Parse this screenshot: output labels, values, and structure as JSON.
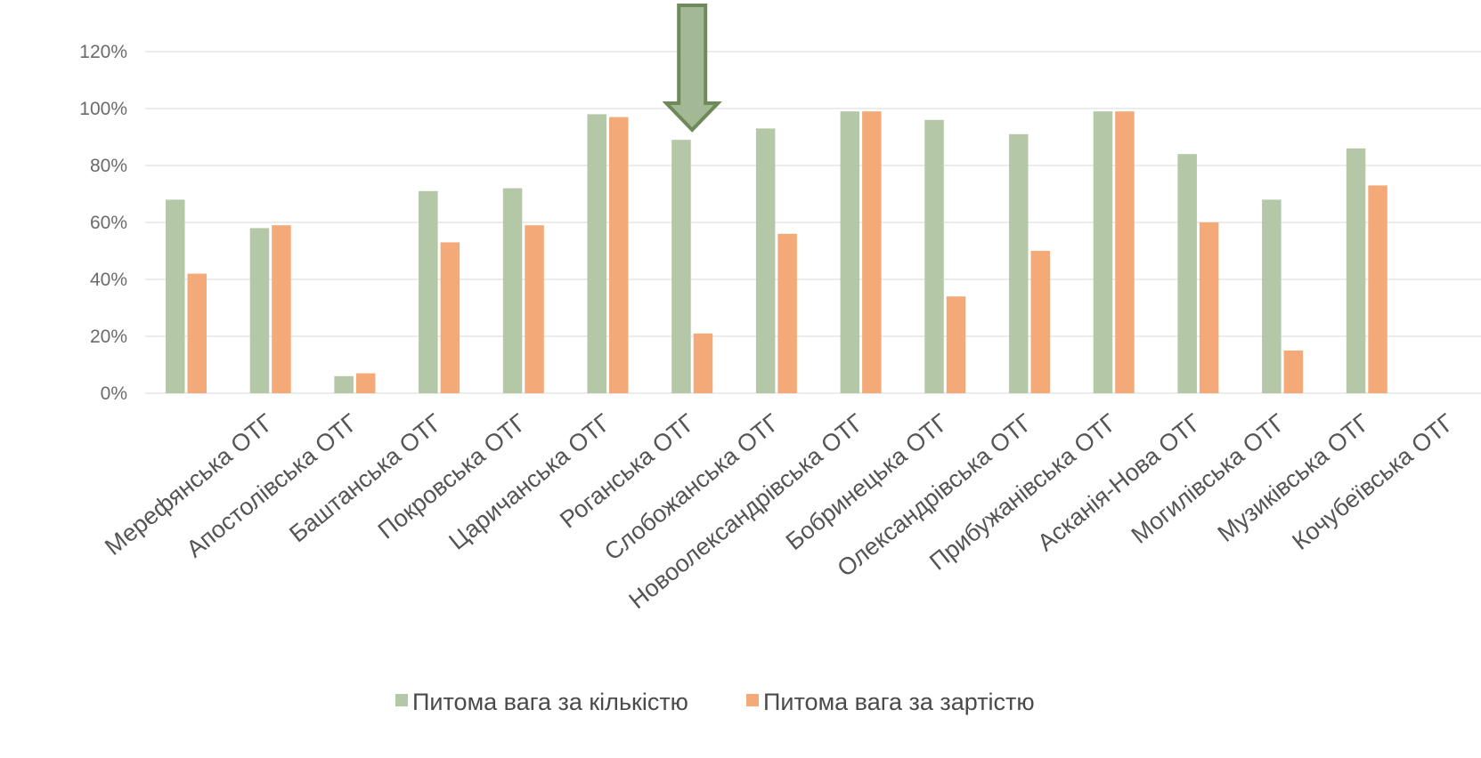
{
  "chart_data": {
    "type": "bar",
    "title": "",
    "xlabel": "",
    "ylabel": "",
    "ylim": [
      0,
      1.2
    ],
    "y_ticks": [
      0,
      0.2,
      0.4,
      0.6,
      0.8,
      1.0,
      1.2
    ],
    "y_tick_labels": [
      "0%",
      "20%",
      "40%",
      "60%",
      "80%",
      "100%",
      "120%"
    ],
    "grid": true,
    "legend_position": "bottom",
    "categories": [
      "Мерефянська ОТГ",
      "Апостолівська ОТГ",
      "Баштанська ОТГ",
      "Покровська ОТГ",
      "Царичанська ОТГ",
      "Роганська ОТГ",
      "Слобожанська ОТГ",
      "Новоолександрівська ОТГ",
      "Бобринецька ОТГ",
      "Олександрівська ОТГ",
      "Прибужанівська ОТГ",
      "Асканія-Нова ОТГ",
      "Могилівська ОТГ",
      "Музиківська ОТГ",
      "Кочубеївська ОТГ"
    ],
    "series": [
      {
        "name": "Питома вага за кількістю",
        "color": "#b4c7a6",
        "values": [
          0.68,
          0.58,
          0.06,
          0.71,
          0.72,
          0.98,
          0.89,
          0.93,
          0.99,
          0.96,
          0.91,
          0.99,
          0.84,
          0.68,
          0.86
        ]
      },
      {
        "name": "Питома вага за зартістю",
        "color": "#f4aa78",
        "values": [
          0.42,
          0.59,
          0.07,
          0.53,
          0.59,
          0.97,
          0.21,
          0.56,
          0.99,
          0.34,
          0.5,
          0.99,
          0.6,
          0.15,
          0.73
        ]
      }
    ],
    "annotation": {
      "type": "arrow-down",
      "category_index": 6,
      "color": "#a3b895",
      "stroke": "#6e8a5a"
    }
  }
}
